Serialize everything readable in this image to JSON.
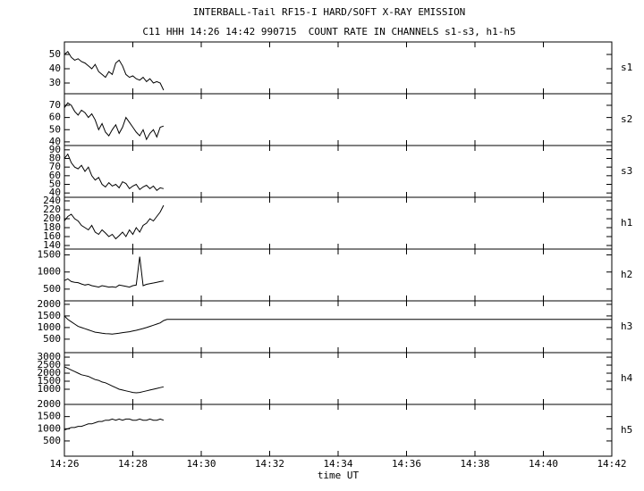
{
  "chart_data": [
    {
      "type": "line",
      "title": "INTERBALL-Tail RF15-I HARD/SOFT X-RAY EMISSION",
      "subtitle": "C11 HHH 14:26 14:42 990715  COUNT RATE IN CHANNELS s1-s3, h1-h5",
      "label": "s1",
      "color": "#000000",
      "x": [
        866.0,
        866.1,
        866.2,
        866.3,
        866.4,
        866.5,
        866.6,
        866.7,
        866.8,
        866.9,
        867.0,
        867.1,
        867.2,
        867.3,
        867.4,
        867.5,
        867.6,
        867.7,
        867.8,
        867.9,
        868.0,
        868.1,
        868.2,
        868.3,
        868.4,
        868.5,
        868.6,
        868.7,
        868.8,
        868.9
      ],
      "values": [
        50,
        52,
        48,
        46,
        47,
        45,
        44,
        42,
        40,
        43,
        38,
        36,
        34,
        38,
        36,
        44,
        46,
        42,
        36,
        34,
        35,
        33,
        32,
        34,
        31,
        33,
        30,
        31,
        30,
        25
      ],
      "xlim": [
        866,
        882
      ],
      "ylim": [
        22.5,
        58.75
      ],
      "yticks": [
        30,
        40,
        50
      ]
    },
    {
      "type": "line",
      "label": "s2",
      "color": "#000000",
      "x": [
        866.0,
        866.1,
        866.2,
        866.3,
        866.4,
        866.5,
        866.6,
        866.7,
        866.8,
        866.9,
        867.0,
        867.1,
        867.2,
        867.3,
        867.4,
        867.5,
        867.6,
        867.7,
        867.8,
        867.9,
        868.0,
        868.1,
        868.2,
        868.3,
        868.4,
        868.5,
        868.6,
        868.7,
        868.8,
        868.9
      ],
      "values": [
        68,
        72,
        70,
        65,
        62,
        66,
        64,
        60,
        63,
        58,
        50,
        55,
        48,
        45,
        50,
        54,
        47,
        52,
        60,
        56,
        52,
        48,
        45,
        50,
        42,
        47,
        50,
        44,
        52,
        53
      ],
      "xlim": [
        866,
        882
      ],
      "ylim": [
        37,
        79.5
      ],
      "yticks": [
        40,
        50,
        60,
        70
      ]
    },
    {
      "type": "line",
      "label": "s3",
      "color": "#000000",
      "x": [
        866.0,
        866.1,
        866.2,
        866.3,
        866.4,
        866.5,
        866.6,
        866.7,
        866.8,
        866.9,
        867.0,
        867.1,
        867.2,
        867.3,
        867.4,
        867.5,
        867.6,
        867.7,
        867.8,
        867.9,
        868.0,
        868.1,
        868.2,
        868.3,
        868.4,
        868.5,
        868.6,
        868.7,
        868.8,
        868.9
      ],
      "values": [
        80,
        85,
        75,
        70,
        68,
        72,
        65,
        70,
        60,
        55,
        58,
        50,
        47,
        52,
        48,
        50,
        46,
        53,
        51,
        45,
        48,
        50,
        44,
        47,
        49,
        45,
        48,
        43,
        46,
        45
      ],
      "xlim": [
        866,
        882
      ],
      "ylim": [
        35,
        95
      ],
      "yticks": [
        40,
        50,
        60,
        70,
        80,
        90
      ]
    },
    {
      "type": "line",
      "label": "h1",
      "color": "#000000",
      "x": [
        866.0,
        866.1,
        866.2,
        866.3,
        866.4,
        866.5,
        866.6,
        866.7,
        866.8,
        866.9,
        867.0,
        867.1,
        867.2,
        867.3,
        867.4,
        867.5,
        867.6,
        867.7,
        867.8,
        867.9,
        868.0,
        868.1,
        868.2,
        868.3,
        868.4,
        868.5,
        868.6,
        868.7,
        868.8,
        868.9
      ],
      "values": [
        195,
        205,
        210,
        200,
        195,
        185,
        180,
        175,
        185,
        170,
        165,
        175,
        168,
        160,
        165,
        155,
        162,
        170,
        160,
        175,
        165,
        180,
        170,
        185,
        190,
        200,
        195,
        205,
        215,
        230
      ],
      "xlim": [
        866,
        882
      ],
      "ylim": [
        132,
        248
      ],
      "yticks": [
        140,
        160,
        180,
        200,
        220,
        240
      ]
    },
    {
      "type": "line",
      "label": "h2",
      "color": "#000000",
      "x": [
        866.0,
        866.1,
        866.2,
        866.3,
        866.4,
        866.5,
        866.6,
        866.7,
        866.8,
        866.9,
        867.0,
        867.1,
        867.2,
        867.3,
        867.4,
        867.5,
        867.6,
        867.7,
        867.8,
        867.9,
        868.0,
        868.1,
        868.2,
        868.3,
        868.4,
        868.5,
        868.6,
        868.7,
        868.8,
        868.9
      ],
      "values": [
        750,
        800,
        720,
        700,
        690,
        650,
        620,
        640,
        600,
        580,
        560,
        600,
        580,
        560,
        570,
        550,
        620,
        600,
        580,
        560,
        600,
        620,
        1450,
        600,
        640,
        660,
        680,
        700,
        720,
        740
      ],
      "xlim": [
        866,
        882
      ],
      "ylim": [
        157,
        1671
      ],
      "yticks": [
        500,
        1000,
        1500
      ]
    },
    {
      "type": "line",
      "label": "h3",
      "color": "#000000",
      "x": [
        866.0,
        866.1,
        866.2,
        866.3,
        866.4,
        866.5,
        866.6,
        866.7,
        866.8,
        866.9,
        867.0,
        867.1,
        867.2,
        867.3,
        867.4,
        867.5,
        867.6,
        867.7,
        867.8,
        867.9,
        868.0,
        868.1,
        868.2,
        868.3,
        868.4,
        868.5,
        868.6,
        868.7,
        868.8,
        868.9,
        869.0,
        882.0
      ],
      "values": [
        1500,
        1350,
        1250,
        1150,
        1050,
        1000,
        950,
        900,
        850,
        800,
        780,
        760,
        740,
        730,
        720,
        740,
        760,
        780,
        800,
        820,
        850,
        880,
        920,
        960,
        1000,
        1050,
        1100,
        1150,
        1200,
        1300,
        1350,
        1350
      ],
      "xlim": [
        866,
        882
      ],
      "ylim": [
        -80,
        2150
      ],
      "yticks": [
        500,
        1000,
        1500,
        2000
      ]
    },
    {
      "type": "line",
      "label": "h4",
      "color": "#000000",
      "x": [
        866.0,
        866.1,
        866.2,
        866.3,
        866.4,
        866.5,
        866.6,
        866.7,
        866.8,
        866.9,
        867.0,
        867.1,
        867.2,
        867.3,
        867.4,
        867.5,
        867.6,
        867.7,
        867.8,
        867.9,
        868.0,
        868.1,
        868.2,
        868.3,
        868.4,
        868.5,
        868.6,
        868.7,
        868.8,
        868.9
      ],
      "values": [
        2400,
        2300,
        2200,
        2100,
        2000,
        1900,
        1850,
        1800,
        1700,
        1600,
        1550,
        1450,
        1400,
        1300,
        1200,
        1100,
        1000,
        950,
        900,
        850,
        800,
        780,
        800,
        850,
        900,
        950,
        1000,
        1050,
        1100,
        1150
      ],
      "xlim": [
        866,
        882
      ],
      "ylim": [
        55,
        3280
      ],
      "yticks": [
        1000,
        1500,
        2000,
        2500,
        3000
      ]
    },
    {
      "type": "line",
      "label": "h5",
      "color": "#000000",
      "xlabel": "time UT",
      "x": [
        866.0,
        866.1,
        866.2,
        866.3,
        866.4,
        866.5,
        866.6,
        866.7,
        866.8,
        866.9,
        867.0,
        867.1,
        867.2,
        867.3,
        867.4,
        867.5,
        867.6,
        867.7,
        867.8,
        867.9,
        868.0,
        868.1,
        868.2,
        868.3,
        868.4,
        868.5,
        868.6,
        868.7,
        868.8,
        868.9
      ],
      "values": [
        950,
        1000,
        1050,
        1050,
        1100,
        1100,
        1150,
        1200,
        1200,
        1250,
        1300,
        1300,
        1350,
        1350,
        1400,
        1350,
        1400,
        1350,
        1400,
        1400,
        1350,
        1350,
        1400,
        1350,
        1350,
        1400,
        1350,
        1350,
        1400,
        1350
      ],
      "xlim": [
        866,
        882
      ],
      "ylim": [
        -125,
        2000
      ],
      "yticks": [
        500,
        1000,
        1500,
        2000
      ],
      "xticks": [
        {
          "value": 866,
          "label": "14:26"
        },
        {
          "value": 868,
          "label": "14:28"
        },
        {
          "value": 870,
          "label": "14:30"
        },
        {
          "value": 872,
          "label": "14:32"
        },
        {
          "value": 874,
          "label": "14:34"
        },
        {
          "value": 876,
          "label": "14:36"
        },
        {
          "value": 878,
          "label": "14:38"
        },
        {
          "value": 880,
          "label": "14:40"
        },
        {
          "value": 882,
          "label": "14:42"
        }
      ]
    }
  ]
}
